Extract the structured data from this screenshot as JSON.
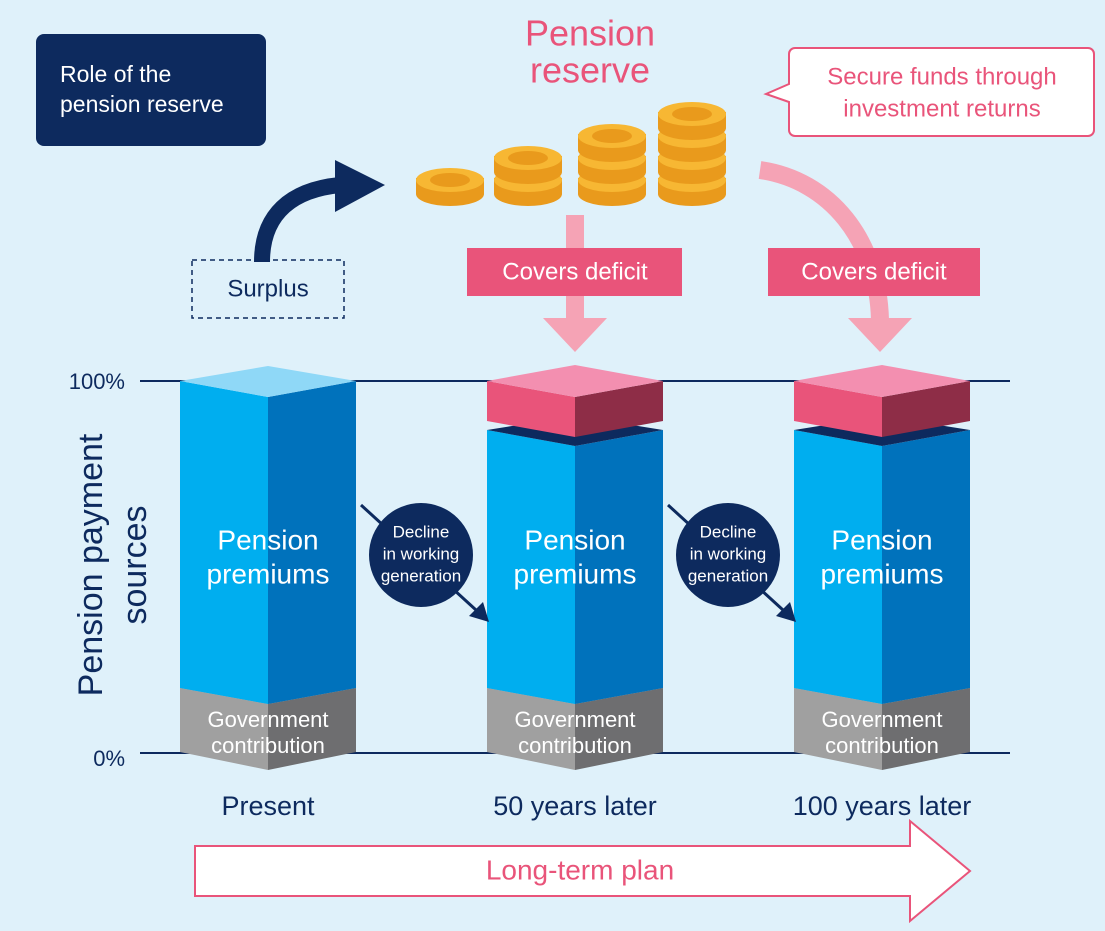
{
  "badge": [
    "Role of the",
    "pension reserve"
  ],
  "title": [
    "Pension",
    "reserve"
  ],
  "callout": [
    "Secure funds through",
    "investment returns"
  ],
  "surplus": "Surplus",
  "covers": [
    "Covers deficit",
    "Covers deficit"
  ],
  "axis_label": [
    "Pension payment",
    "sources"
  ],
  "ticks": [
    "100%",
    "0%"
  ],
  "columns": [
    {
      "label": "Present",
      "premiums": [
        "Pension",
        "premiums"
      ],
      "government": [
        "Government",
        "contribution"
      ]
    },
    {
      "label": "50 years later",
      "premiums": [
        "Pension",
        "premiums"
      ],
      "government": [
        "Government",
        "contribution"
      ]
    },
    {
      "label": "100 years later",
      "premiums": [
        "Pension",
        "premiums"
      ],
      "government": [
        "Government",
        "contribution"
      ]
    }
  ],
  "decline": [
    [
      "Decline",
      "in working",
      "generation"
    ],
    [
      "Decline",
      "in working",
      "generation"
    ]
  ],
  "plan": "Long-term plan"
}
